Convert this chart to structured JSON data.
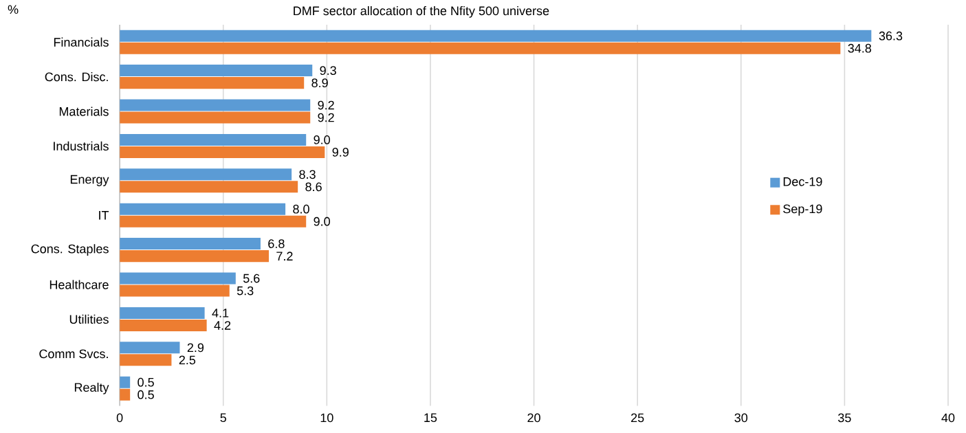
{
  "chart_data": {
    "type": "bar",
    "orientation": "horizontal",
    "title": "DMF sector allocation of the Nfity 500 universe",
    "ylabel": "%",
    "categories": [
      "Financials",
      "Cons. Disc.",
      "Materials",
      "Industrials",
      "Energy",
      "IT",
      "Cons. Staples",
      "Healthcare",
      "Utilities",
      "Comm Svcs.",
      "Realty"
    ],
    "series": [
      {
        "name": "Dec-19",
        "color": "#5b9bd5",
        "values": [
          36.3,
          9.3,
          9.2,
          9.0,
          8.3,
          8.0,
          6.8,
          5.6,
          4.1,
          2.9,
          0.5
        ],
        "value_labels": [
          "36.3",
          "9.3",
          "9.2",
          "9.0",
          "8.3",
          "8.0",
          "6.8",
          "5.6",
          "4.1",
          "2.9",
          "0.5"
        ]
      },
      {
        "name": "Sep-19",
        "color": "#ed7d31",
        "values": [
          34.8,
          8.9,
          9.2,
          9.9,
          8.6,
          9.0,
          7.2,
          5.3,
          4.2,
          2.5,
          0.5
        ],
        "value_labels": [
          "34.8",
          "8.9",
          "9.2",
          "9.9",
          "8.6",
          "9.0",
          "7.2",
          "5.3",
          "4.2",
          "2.5",
          "0.5"
        ]
      }
    ],
    "xlim": [
      0,
      40
    ],
    "xticks": [
      0,
      5,
      10,
      15,
      20,
      25,
      30,
      35,
      40
    ],
    "grid": "x",
    "legend": "right"
  }
}
